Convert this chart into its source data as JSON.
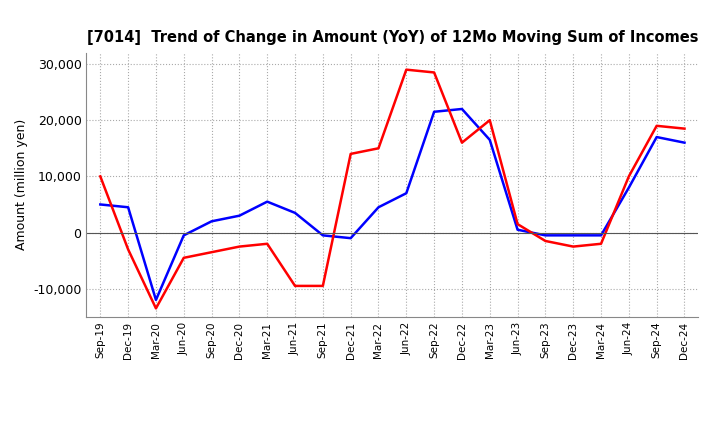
{
  "title": "[7014]  Trend of Change in Amount (YoY) of 12Mo Moving Sum of Incomes",
  "ylabel": "Amount (million yen)",
  "ylim": [
    -15000,
    32000
  ],
  "yticks": [
    -10000,
    0,
    10000,
    20000,
    30000
  ],
  "x_labels": [
    "Sep-19",
    "Dec-19",
    "Mar-20",
    "Jun-20",
    "Sep-20",
    "Dec-20",
    "Mar-21",
    "Jun-21",
    "Sep-21",
    "Dec-21",
    "Mar-22",
    "Jun-22",
    "Sep-22",
    "Dec-22",
    "Mar-23",
    "Jun-23",
    "Sep-23",
    "Dec-23",
    "Mar-24",
    "Jun-24",
    "Sep-24",
    "Dec-24"
  ],
  "ordinary_income": [
    5000,
    4500,
    -12000,
    -500,
    2000,
    3000,
    5500,
    3500,
    -500,
    -1000,
    4500,
    7000,
    21500,
    22000,
    16500,
    500,
    -500,
    -500,
    -500,
    8000,
    17000,
    16000
  ],
  "net_income": [
    10000,
    -3000,
    -13500,
    -4500,
    -3500,
    -2500,
    -2000,
    -9500,
    -9500,
    14000,
    15000,
    29000,
    28500,
    16000,
    20000,
    1500,
    -1500,
    -2500,
    -2000,
    10000,
    19000,
    18500
  ],
  "ordinary_income_color": "#0000ff",
  "net_income_color": "#ff0000",
  "line_width": 1.8,
  "background_color": "#ffffff",
  "grid_color": "#aaaaaa",
  "grid_style": "dotted"
}
